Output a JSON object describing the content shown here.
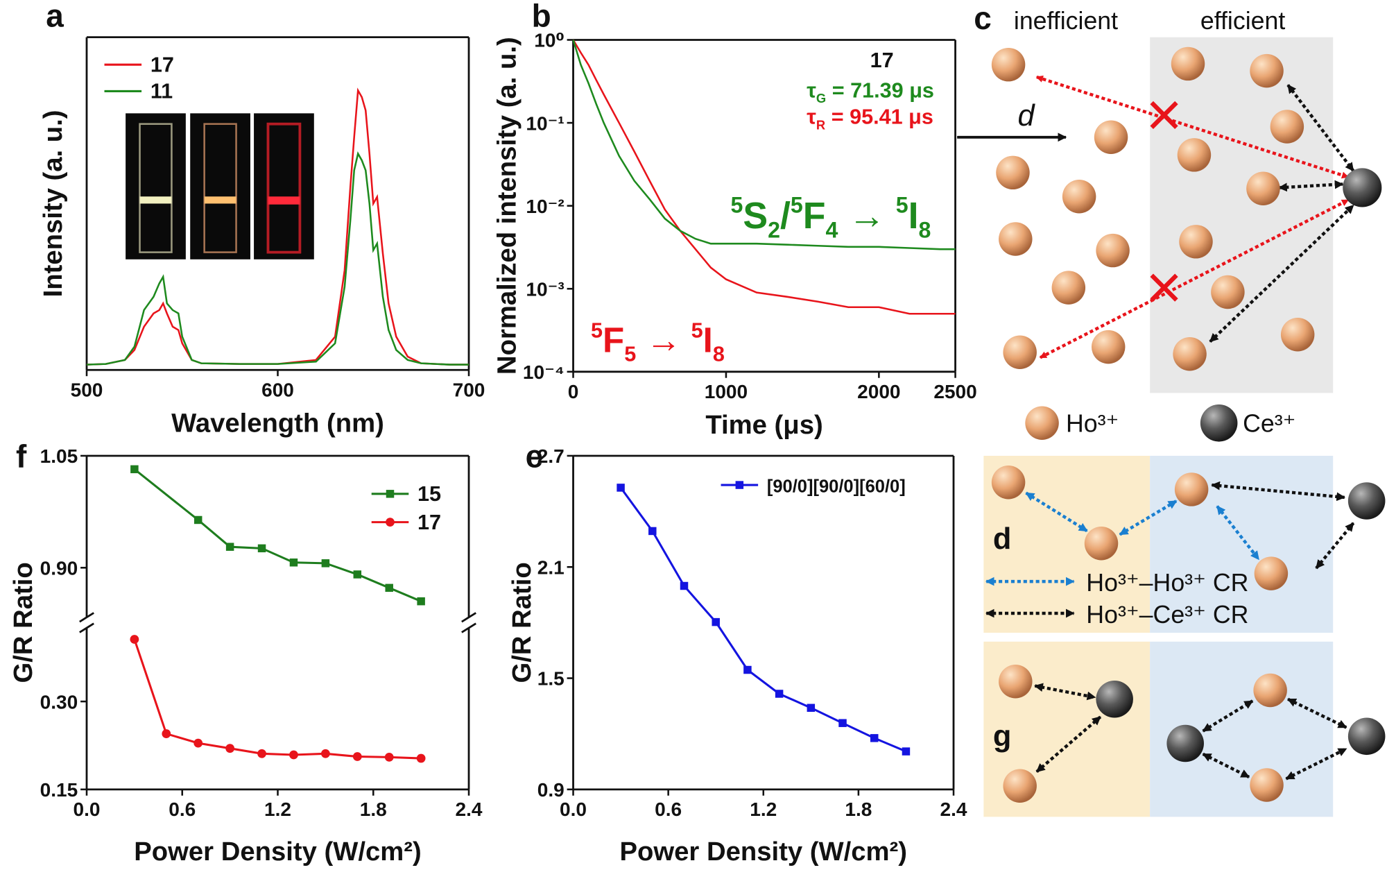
{
  "chart_data": [
    {
      "type": "line",
      "label": "a",
      "xlabel": "Wavelength (nm)",
      "ylabel": "Intensity (a. u.)",
      "x": [
        500,
        510,
        520,
        525,
        530,
        535,
        538,
        540,
        542,
        545,
        548,
        550,
        555,
        560,
        580,
        600,
        620,
        630,
        635,
        638,
        640,
        642,
        644,
        646,
        648,
        650,
        652,
        655,
        658,
        662,
        668,
        675,
        690,
        700
      ],
      "xlim": [
        500,
        700
      ],
      "xticks": [
        500,
        600,
        700
      ],
      "ylim": [
        0,
        1
      ],
      "series": [
        {
          "name": "17",
          "color": "#e8141b",
          "values": [
            0.016,
            0.018,
            0.03,
            0.06,
            0.13,
            0.17,
            0.18,
            0.2,
            0.17,
            0.13,
            0.12,
            0.08,
            0.03,
            0.02,
            0.018,
            0.018,
            0.03,
            0.1,
            0.3,
            0.55,
            0.7,
            0.84,
            0.82,
            0.78,
            0.65,
            0.5,
            0.52,
            0.35,
            0.2,
            0.1,
            0.04,
            0.02,
            0.016,
            0.016
          ]
        },
        {
          "name": "11",
          "color": "#1e8a1e",
          "values": [
            0.016,
            0.018,
            0.03,
            0.07,
            0.18,
            0.22,
            0.26,
            0.28,
            0.2,
            0.18,
            0.17,
            0.1,
            0.03,
            0.02,
            0.018,
            0.018,
            0.025,
            0.08,
            0.25,
            0.45,
            0.6,
            0.65,
            0.63,
            0.6,
            0.5,
            0.36,
            0.38,
            0.22,
            0.12,
            0.06,
            0.03,
            0.02,
            0.016,
            0.016
          ]
        }
      ]
    },
    {
      "type": "line",
      "label": "b",
      "xlabel": "Time (μs)",
      "ylabel": "Normalized intensity (a. u.)",
      "log_y": true,
      "x": [
        0,
        50,
        100,
        150,
        200,
        300,
        400,
        500,
        600,
        700,
        800,
        900,
        1000,
        1200,
        1400,
        1600,
        1800,
        2000,
        2200,
        2400,
        2500
      ],
      "xlim": [
        0,
        2500
      ],
      "xticks": [
        0,
        1000,
        2000,
        2500
      ],
      "ylim": [
        0.0001,
        1
      ],
      "yticks": [
        {
          "value": 1,
          "label": "10⁰"
        },
        {
          "value": 0.1,
          "label": "10⁻¹"
        },
        {
          "value": 0.01,
          "label": "10⁻²"
        },
        {
          "value": 0.001,
          "label": "10⁻³"
        },
        {
          "value": 0.0001,
          "label": "10⁻⁴"
        }
      ],
      "series": [
        {
          "color": "#e8141b",
          "values": [
            1,
            0.7,
            0.5,
            0.33,
            0.22,
            0.1,
            0.045,
            0.02,
            0.009,
            0.005,
            0.003,
            0.0018,
            0.0013,
            0.0009,
            0.0008,
            0.0007,
            0.0006,
            0.0006,
            0.0005,
            0.0005,
            0.0005
          ]
        },
        {
          "color": "#1e8a1e",
          "values": [
            1,
            0.5,
            0.3,
            0.17,
            0.1,
            0.04,
            0.02,
            0.012,
            0.007,
            0.005,
            0.004,
            0.0035,
            0.0035,
            0.0035,
            0.0034,
            0.0033,
            0.0032,
            0.0032,
            0.0031,
            0.003,
            0.003
          ]
        }
      ],
      "annotations": [
        {
          "color": "#111111",
          "segments": [
            {
              "text": "17",
              "pos": "base"
            }
          ]
        },
        {
          "color": "#1e8a1e",
          "segments": [
            {
              "text": "τ",
              "pos": "base"
            },
            {
              "text": "G",
              "pos": "sub"
            },
            {
              "text": " = 71.39 μs",
              "pos": "base"
            }
          ]
        },
        {
          "color": "#e8141b",
          "segments": [
            {
              "text": "τ",
              "pos": "base"
            },
            {
              "text": "R",
              "pos": "sub"
            },
            {
              "text": " = 95.41 μs",
              "pos": "base"
            }
          ]
        },
        {
          "color": "#1e8a1e",
          "segments": [
            {
              "text": "5",
              "pos": "sup"
            },
            {
              "text": "S",
              "pos": "base"
            },
            {
              "text": "2",
              "pos": "sub"
            },
            {
              "text": "/",
              "pos": "base"
            },
            {
              "text": "5",
              "pos": "sup"
            },
            {
              "text": "F",
              "pos": "base"
            },
            {
              "text": "4",
              "pos": "sub"
            },
            {
              "text": " → ",
              "pos": "base"
            },
            {
              "text": "5",
              "pos": "sup"
            },
            {
              "text": "I",
              "pos": "base"
            },
            {
              "text": "8",
              "pos": "sub"
            }
          ]
        },
        {
          "color": "#e8141b",
          "segments": [
            {
              "text": "5",
              "pos": "sup"
            },
            {
              "text": "F",
              "pos": "base"
            },
            {
              "text": "5",
              "pos": "sub"
            },
            {
              "text": " → ",
              "pos": "base"
            },
            {
              "text": "5",
              "pos": "sup"
            },
            {
              "text": "I",
              "pos": "base"
            },
            {
              "text": "8",
              "pos": "sub"
            }
          ]
        }
      ]
    },
    {
      "type": "line",
      "label": "f",
      "xlabel": "Power Density (W/cm²)",
      "ylabel": "G/R Ratio",
      "xlim": [
        0,
        2.4
      ],
      "xticks": [
        {
          "value": 0,
          "label": "0.0"
        },
        0.6,
        1.2,
        1.8,
        2.4
      ],
      "ylim": [
        0.15,
        1.05
      ],
      "ybreak": [
        0.43,
        0.83
      ],
      "yticks": [
        0.15,
        {
          "value": 0.3,
          "label": "0.30"
        },
        {
          "value": 0.9,
          "label": "0.90"
        },
        1.05
      ],
      "series": [
        {
          "name": "15",
          "color": "#1e7d1e",
          "marker": "square",
          "x": [
            0.3,
            0.7,
            0.9,
            1.1,
            1.3,
            1.5,
            1.7,
            1.9,
            2.1
          ],
          "values": [
            1.032,
            0.964,
            0.928,
            0.926,
            0.907,
            0.906,
            0.891,
            0.873,
            0.855
          ]
        },
        {
          "name": "17",
          "color": "#e8141b",
          "marker": "circle",
          "x": [
            0.3,
            0.5,
            0.7,
            0.9,
            1.1,
            1.3,
            1.5,
            1.7,
            1.9,
            2.1
          ],
          "values": [
            0.406,
            0.245,
            0.229,
            0.22,
            0.211,
            0.209,
            0.211,
            0.206,
            0.205,
            0.203
          ]
        }
      ]
    },
    {
      "type": "line",
      "label": "e",
      "xlabel": "Power Density (W/cm²)",
      "ylabel": "G/R Ratio",
      "x": [
        0.3,
        0.5,
        0.7,
        0.9,
        1.1,
        1.3,
        1.5,
        1.7,
        1.9,
        2.1
      ],
      "xlim": [
        0,
        2.4
      ],
      "xticks": [
        {
          "value": 0,
          "label": "0.0"
        },
        0.6,
        1.2,
        1.8,
        2.4
      ],
      "ylim": [
        0.9,
        2.7
      ],
      "yticks": [
        0.9,
        1.5,
        2.1,
        2.7
      ],
      "series": [
        {
          "name": "[90/0][90/0][60/0]",
          "color": "#1414e0",
          "marker": "square",
          "values": [
            2.528,
            2.294,
            1.998,
            1.803,
            1.545,
            1.416,
            1.34,
            1.258,
            1.177,
            1.105
          ]
        }
      ]
    }
  ],
  "diagrams": {
    "c": {
      "label": "c",
      "left_title": "inefficient",
      "right_title": "efficient",
      "distance": "d",
      "legend": [
        "Ho³⁺",
        "Ce³⁺"
      ]
    },
    "d": {
      "label": "d",
      "legend": [
        "Ho³⁺–Ho³⁺ CR",
        "Ho³⁺–Ce³⁺ CR"
      ]
    },
    "g": {
      "label": "g"
    }
  }
}
